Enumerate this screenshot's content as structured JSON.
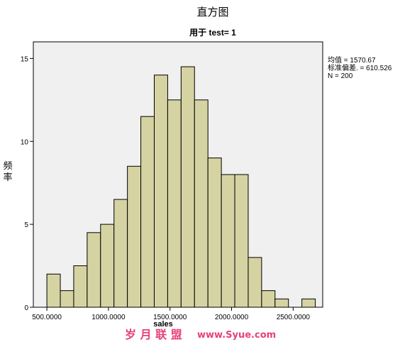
{
  "chart_data": {
    "type": "bar",
    "title": "直方图",
    "subtitle": "用于 test= 1",
    "xlabel": "sales",
    "ylabel": "频率",
    "bin_start": 500,
    "bin_width": 109,
    "values": [
      2,
      1,
      2.5,
      4.5,
      5,
      6.5,
      8.5,
      11.5,
      14,
      12.5,
      14.5,
      12.5,
      9,
      8,
      8,
      3,
      1,
      0.5,
      0,
      0.5
    ],
    "xlim": [
      390,
      2740
    ],
    "ylim": [
      0,
      16
    ],
    "x_ticks": [
      {
        "value": 500,
        "label": "500.0000"
      },
      {
        "value": 1000,
        "label": "1000.0000"
      },
      {
        "value": 1500,
        "label": "1500.0000"
      },
      {
        "value": 2000,
        "label": "2000.0000"
      },
      {
        "value": 2500,
        "label": "2500.0000"
      }
    ],
    "y_ticks": [
      {
        "value": 0,
        "label": "0"
      },
      {
        "value": 5,
        "label": "5"
      },
      {
        "value": 10,
        "label": "10"
      },
      {
        "value": 15,
        "label": "15"
      }
    ],
    "stats": {
      "mean_line": "均值 = 1570.67",
      "sd_line": "标准偏差. = 610.526",
      "n_line": "N = 200"
    },
    "grid": false,
    "legend": "none",
    "colors": {
      "bar_fill": "#d6d3a3",
      "bar_stroke": "#000000",
      "plot_bg": "#f0f0f0"
    }
  },
  "watermark": {
    "text": "岁 月 联 盟",
    "url": "www.Syue.com"
  }
}
